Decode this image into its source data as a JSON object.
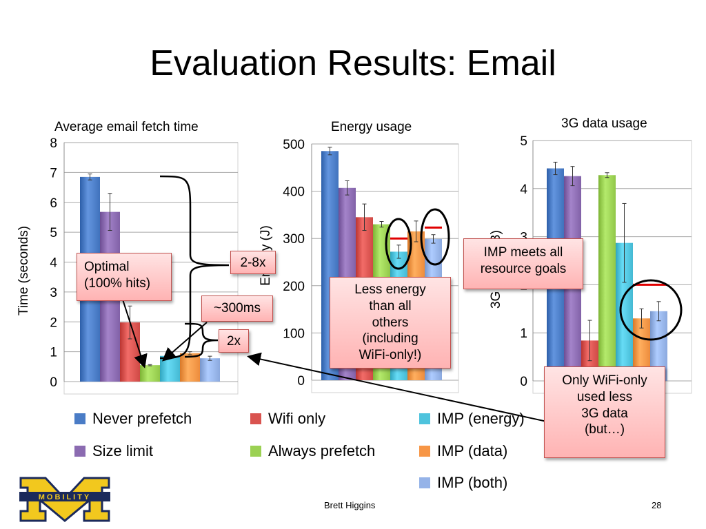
{
  "slide": {
    "title": "Evaluation Results: Email",
    "footer_author": "Brett Higgins",
    "page_number": "28",
    "logo_text": "MOBILITY"
  },
  "series_colors": {
    "Never prefetch": "#4a7cc6",
    "Size limit": "#8b6bb1",
    "Wifi only": "#d9534f",
    "Always prefetch": "#9bd153",
    "IMP (energy)": "#4ec3dd",
    "IMP (data)": "#f79646",
    "IMP (both)": "#95b3e8"
  },
  "legend": [
    {
      "label": "Never prefetch",
      "color": "#4a7cc6"
    },
    {
      "label": "Size limit",
      "color": "#8b6bb1"
    },
    {
      "label": "Wifi only",
      "color": "#d9534f"
    },
    {
      "label": "Always prefetch",
      "color": "#9bd153"
    },
    {
      "label": "IMP (energy)",
      "color": "#4ec3dd"
    },
    {
      "label": "IMP (data)",
      "color": "#f79646"
    },
    {
      "label": "IMP (both)",
      "color": "#95b3e8"
    }
  ],
  "chart_data": [
    {
      "type": "bar",
      "title": "Average email fetch time",
      "ylabel": "Time (seconds)",
      "ylim": [
        0,
        8
      ],
      "yticks": [
        "0",
        "1",
        "2",
        "3",
        "4",
        "5",
        "6",
        "7",
        "8"
      ],
      "grid": true,
      "categories": [
        "Never prefetch",
        "Size limit",
        "Wifi only",
        "Always prefetch",
        "IMP (energy)",
        "IMP (data)",
        "IMP (both)"
      ],
      "values": [
        6.85,
        5.68,
        1.98,
        0.55,
        0.86,
        0.95,
        0.78
      ],
      "errors": [
        0.1,
        0.62,
        0.55,
        0.02,
        0.03,
        0.05,
        0.07
      ]
    },
    {
      "type": "bar",
      "title": "Energy usage",
      "ylabel": "Energy (J)",
      "ylim": [
        0,
        500
      ],
      "yticks": [
        "0",
        "100",
        "200",
        "300",
        "400",
        "500"
      ],
      "grid": true,
      "categories": [
        "Never prefetch",
        "Size limit",
        "Wifi only",
        "Always prefetch",
        "IMP (energy)",
        "IMP (data)",
        "IMP (both)"
      ],
      "values": [
        485,
        407,
        345,
        330,
        272,
        315,
        299
      ],
      "errors": [
        8,
        15,
        28,
        6,
        14,
        22,
        9
      ],
      "goals": [
        {
          "category": "IMP (energy)",
          "value": 300
        },
        {
          "category": "IMP (both)",
          "value": 323
        }
      ]
    },
    {
      "type": "bar",
      "title": "3G data usage",
      "ylabel": "3G data (MB)",
      "ylim": [
        0,
        5
      ],
      "yticks": [
        "0",
        "1",
        "2",
        "3",
        "4",
        "5"
      ],
      "grid": true,
      "categories": [
        "Never prefetch",
        "Size limit",
        "Wifi only",
        "Always prefetch",
        "IMP (energy)",
        "IMP (data)",
        "IMP (both)"
      ],
      "values": [
        4.42,
        4.26,
        0.84,
        4.28,
        2.87,
        1.3,
        1.45
      ],
      "errors": [
        0.13,
        0.2,
        0.42,
        0.05,
        0.82,
        0.2,
        0.2
      ],
      "goals": [
        {
          "category": "IMP (data)",
          "value": 2.0
        },
        {
          "category": "IMP (both)",
          "value": 2.0
        }
      ]
    }
  ],
  "annotations": {
    "optimal": "Optimal\n(100% hits)",
    "range": "2-8x",
    "latency": "~300ms",
    "twox": "2x",
    "energy_note": "Less energy\nthan all\nothers\n(including\nWiFi-only!)",
    "imp_goals": "IMP meets all\nresource goals",
    "wifi_only_note": "Only WiFi-only\nused less\n3G data\n(but…)"
  }
}
